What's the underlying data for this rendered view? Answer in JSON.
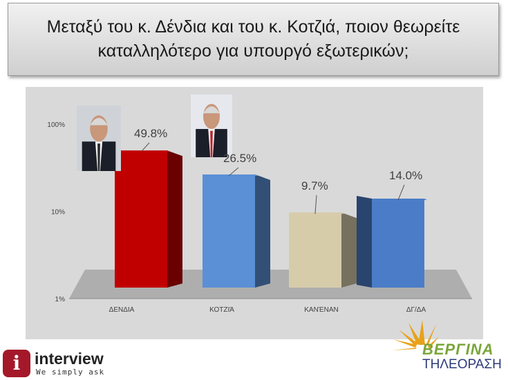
{
  "title": "Μεταξύ του κ. Δένδια και του κ. Κοτζιά, ποιον θεωρείτε καταλληλότερο για υπουργό εξωτερικών;",
  "chart_data": {
    "type": "bar",
    "title": "",
    "xlabel": "",
    "ylabel": "",
    "yscale": "log",
    "ylim": [
      1,
      100
    ],
    "yticks": [
      "1%",
      "10%",
      "100%"
    ],
    "categories": [
      "ΔΕΝΔΙΑ",
      "ΚΟΤΖΙΆ",
      "ΚΑΝΈΝΑΝ",
      "ΔΓ/ΔΑ"
    ],
    "values": [
      49.8,
      26.5,
      9.7,
      14.0
    ],
    "data_labels": [
      "49.8%",
      "26.5%",
      "9.7%",
      "14.0%"
    ],
    "colors": [
      "#c00000",
      "#5b8fd6",
      "#d7ccaa",
      "#4a7cc8"
    ],
    "grid": false,
    "legend": "none"
  },
  "logos": {
    "left_name": "interview",
    "left_tagline": "We simply ask",
    "left_badge": "i",
    "right_name": "ΒΕΡΓΙΝΑ",
    "right_sub": "ΤΗΛΕΟΡΑΣΗ"
  }
}
